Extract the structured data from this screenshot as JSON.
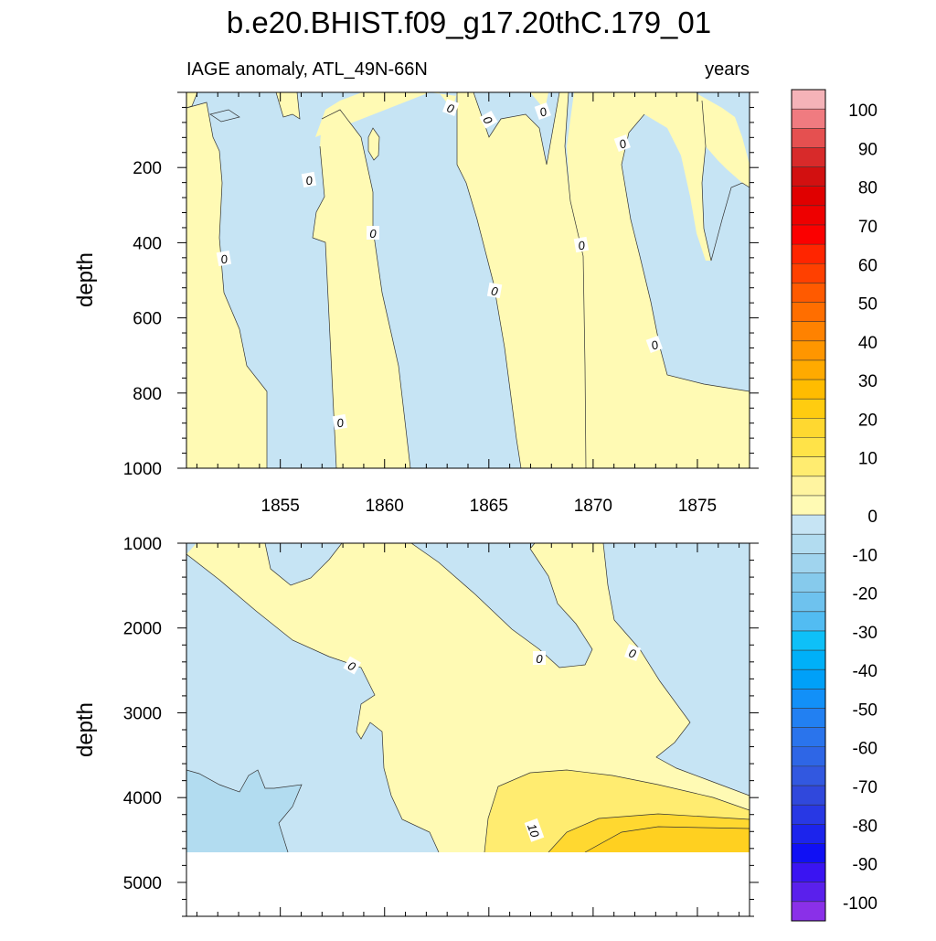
{
  "title": "b.e20.BHIST.f09_g17.20thC.179_01",
  "subtitle_left": "IAGE anomaly, ATL_49N-66N",
  "subtitle_right": "years",
  "chart_data": [
    {
      "type": "contour",
      "panel": "upper",
      "x_ticks": [
        1855,
        1860,
        1865,
        1870,
        1875
      ],
      "xlim": [
        1850.5,
        1877.5
      ],
      "y_ticks": [
        200,
        400,
        600,
        800,
        1000
      ],
      "ylim": [
        0,
        1000
      ],
      "y_reversed": true,
      "ylabel": "depth",
      "contour_labels": [
        "0",
        "0",
        "0",
        "0",
        "0",
        "0",
        "0",
        "0",
        "0",
        "0",
        "0",
        "0"
      ]
    },
    {
      "type": "contour",
      "panel": "lower",
      "x_ticks": [
        1855,
        1860,
        1865,
        1870,
        1875
      ],
      "xlim": [
        1850.5,
        1877.5
      ],
      "y_ticks": [
        1000,
        2000,
        3000,
        4000,
        5000
      ],
      "ylim": [
        1000,
        5400
      ],
      "y_reversed": true,
      "ylabel": "depth",
      "contour_labels": [
        "0",
        "0",
        "0",
        "10"
      ]
    }
  ],
  "colorbar": {
    "labels": [
      "100",
      "90",
      "80",
      "70",
      "60",
      "50",
      "40",
      "30",
      "20",
      "10",
      "0",
      "-10",
      "-20",
      "-30",
      "-40",
      "-50",
      "-60",
      "-70",
      "-80",
      "-90",
      "-100"
    ],
    "colors": [
      "#f5b3b8",
      "#f07b80",
      "#e55050",
      "#d82a2a",
      "#d21010",
      "#e00000",
      "#ee0000",
      "#fb0000",
      "#ff2500",
      "#ff4000",
      "#ff5a00",
      "#ff6e00",
      "#ff8200",
      "#ff9600",
      "#ffaa00",
      "#ffbc00",
      "#ffcc10",
      "#ffd830",
      "#ffe348",
      "#ffec70",
      "#fff4a0",
      "#fffab4",
      "#c6e4f4",
      "#b2dcf0",
      "#a0d4ee",
      "#86caec",
      "#6ec2ee",
      "#52bcf2",
      "#0ec0f8",
      "#00b0f8",
      "#00a0f8",
      "#1290f8",
      "#2280f2",
      "#2a74ec",
      "#2e66e6",
      "#3258e0",
      "#3048dc",
      "#2838e4",
      "#1c24ec",
      "#1010f4",
      "#3a14f2",
      "#5a20ec",
      "#8a30e8"
    ]
  },
  "colors": {
    "neg_light": "#c6e4f4",
    "neg_mid": "#b2dcf0",
    "pos_light": "#fffab4",
    "pos_mid": "#fff4a0",
    "pos_10": "#ffec70",
    "pos_20": "#ffd830"
  }
}
